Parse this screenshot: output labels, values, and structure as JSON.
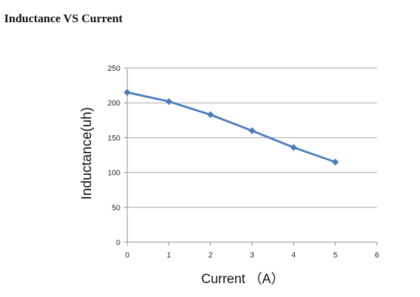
{
  "page_title": "Inductance VS Current",
  "chart_data": {
    "type": "line",
    "title": "",
    "xlabel": "Current （A）",
    "ylabel": "Inductance(uh)",
    "xlim": [
      0,
      6
    ],
    "ylim": [
      0,
      250
    ],
    "xticks": [
      0,
      1,
      2,
      3,
      4,
      5,
      6
    ],
    "yticks": [
      0,
      50,
      100,
      150,
      200,
      250
    ],
    "grid": "horizontal",
    "legend": "none",
    "series": [
      {
        "color": "#4a7ebb",
        "marker": "diamond",
        "x": [
          0,
          1,
          2,
          3,
          4,
          5
        ],
        "y": [
          215,
          202,
          183,
          160,
          136,
          115
        ]
      }
    ]
  }
}
